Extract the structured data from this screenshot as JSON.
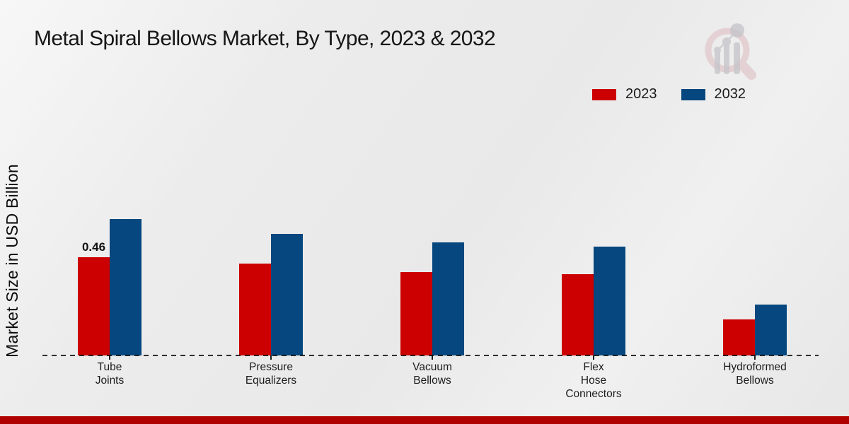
{
  "page": {
    "title": "Metal Spiral Bellows Market, By Type, 2023 & 2032"
  },
  "colors": {
    "series_2023": "#cc0000",
    "series_2032": "#05477e",
    "footer_strip": "#b00000",
    "watermark_pink": "#dcb5b9",
    "watermark_gray": "#c4c4c9"
  },
  "legend": {
    "items": [
      {
        "label": "2023",
        "color": "#cc0000"
      },
      {
        "label": "2032",
        "color": "#05477e"
      }
    ]
  },
  "icons": {
    "watermark": "magnifier-bar-chart-logo"
  },
  "chart_data": {
    "type": "bar",
    "title": "Metal Spiral Bellows Market, By Type, 2023 & 2032",
    "xlabel": "",
    "ylabel": "Market Size in USD Billion",
    "categories": [
      "Tube\nJoints",
      "Pressure\nEqualizers",
      "Vacuum\nBellows",
      "Flex\nHose\nConnectors",
      "Hydroformed\nBellows"
    ],
    "series": [
      {
        "name": "2023",
        "color": "#cc0000",
        "values": [
          0.46,
          0.43,
          0.39,
          0.38,
          0.17
        ]
      },
      {
        "name": "2032",
        "color": "#05477e",
        "values": [
          0.64,
          0.57,
          0.53,
          0.51,
          0.24
        ]
      }
    ],
    "annotations": [
      {
        "series": "2023",
        "category_index": 0,
        "text": "0.46"
      }
    ],
    "ylim": [
      0,
      0.7
    ],
    "grid": false,
    "y_ticks_visible": false,
    "legend_position": "top-right",
    "baseline_style": "dashed"
  }
}
